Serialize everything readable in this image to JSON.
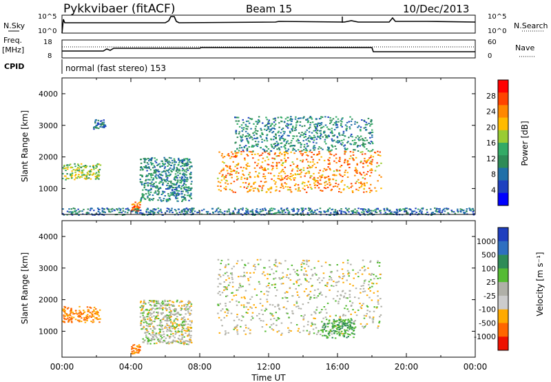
{
  "header": {
    "station": "Pykkvibaer (fitACF)",
    "beam": "Beam 15",
    "date": "10/Dec/2013"
  },
  "noise_panel": {
    "left_label": "N.Sky",
    "right_label": "N.Search",
    "ticks_left": [
      "10^5",
      "10^0"
    ],
    "ticks_right": [
      "10^5",
      "10^0"
    ]
  },
  "freq_panel": {
    "left_label_1": "Freq.",
    "left_label_2": "[MHz]",
    "right_label": "Nave",
    "ticks_left": [
      "18",
      "8"
    ],
    "ticks_right": [
      "60",
      "0"
    ]
  },
  "cpid": {
    "label": "CPID",
    "value": "normal (fast stereo) 153"
  },
  "axes": {
    "ylabel": "Slant Range [km]",
    "yticks": [
      "4000",
      "3000",
      "2000",
      "1000"
    ],
    "xlabel": "Time UT",
    "xticks": [
      "00:00",
      "04:00",
      "08:00",
      "12:00",
      "16:00",
      "20:00",
      "00:00"
    ]
  },
  "power_colorbar": {
    "label": "Power [dB]",
    "ticks": [
      "28",
      "24",
      "20",
      "16",
      "12",
      "8",
      "4"
    ],
    "colors": [
      "#ff0000",
      "#ff4400",
      "#ff8800",
      "#ffbb00",
      "#99cc33",
      "#33aa66",
      "#2e8b57",
      "#1f6fa8",
      "#1e40c0",
      "#0000ff"
    ]
  },
  "velocity_colorbar": {
    "label": "Velocity [m s⁻¹]",
    "ticks": [
      "1000",
      "500",
      "100",
      "25",
      "-25",
      "-100",
      "-500",
      "-1000"
    ],
    "colors": [
      "#1f3fbf",
      "#2e6fc0",
      "#2e8b57",
      "#55bb33",
      "#b0b0a8",
      "#cccccc",
      "#ffaa00",
      "#ff6600",
      "#ee1100"
    ]
  },
  "chart_data": [
    {
      "type": "line",
      "title": "N.Sky / N.Search",
      "x": [
        "00:00",
        "04:00",
        "06:00",
        "06:30",
        "08:00",
        "12:00",
        "16:00",
        "19:00",
        "24:00"
      ],
      "series": [
        {
          "name": "N.Sky",
          "values": [
            1,
            1,
            3,
            1,
            1,
            1,
            2,
            3,
            1
          ]
        }
      ]
    },
    {
      "type": "line",
      "x": [
        "00:00",
        "02:00",
        "03:00",
        "08:00",
        "18:00",
        "24:00"
      ],
      "series": [
        {
          "name": "Freq.",
          "values": [
            9,
            9,
            10,
            11,
            9,
            9
          ]
        }
      ]
    },
    {
      "type": "heatmap",
      "title": "Power [dB]",
      "xlabel": "Time UT",
      "ylabel": "Slant Range [km]",
      "xlim": [
        0,
        24
      ],
      "ylim": [
        180,
        4500
      ],
      "clim": [
        0,
        30
      ],
      "regions": [
        {
          "t": [
            0.0,
            2.2
          ],
          "range": [
            1300,
            1800
          ],
          "value": 16
        },
        {
          "t": [
            1.8,
            2.5
          ],
          "range": [
            2900,
            3200
          ],
          "value": 8
        },
        {
          "t": [
            4.0,
            4.5
          ],
          "range": [
            300,
            600
          ],
          "value": 24
        },
        {
          "t": [
            4.5,
            7.5
          ],
          "range": [
            600,
            2000
          ],
          "value": 10
        },
        {
          "t": [
            9.0,
            18.5
          ],
          "range": [
            900,
            2200
          ],
          "value": 22
        },
        {
          "t": [
            10.0,
            18.0
          ],
          "range": [
            2200,
            3300
          ],
          "value": 10
        },
        {
          "t": [
            0.0,
            24.0
          ],
          "range": [
            180,
            400
          ],
          "value": 8
        }
      ]
    },
    {
      "type": "heatmap",
      "title": "Velocity [m s⁻¹]",
      "xlabel": "Time UT",
      "ylabel": "Slant Range [km]",
      "xlim": [
        0,
        24
      ],
      "ylim": [
        180,
        4500
      ],
      "clim": [
        -1000,
        1000
      ],
      "regions": [
        {
          "t": [
            0.0,
            2.2
          ],
          "range": [
            1300,
            1800
          ],
          "value": -100
        },
        {
          "t": [
            4.0,
            4.5
          ],
          "range": [
            300,
            600
          ],
          "value": -100
        },
        {
          "t": [
            4.5,
            7.5
          ],
          "range": [
            600,
            2000
          ],
          "value": 0
        },
        {
          "t": [
            9.0,
            18.5
          ],
          "range": [
            900,
            3300
          ],
          "value": 0
        },
        {
          "t": [
            15.0,
            17.0
          ],
          "range": [
            800,
            1400
          ],
          "value": 100
        }
      ]
    }
  ]
}
